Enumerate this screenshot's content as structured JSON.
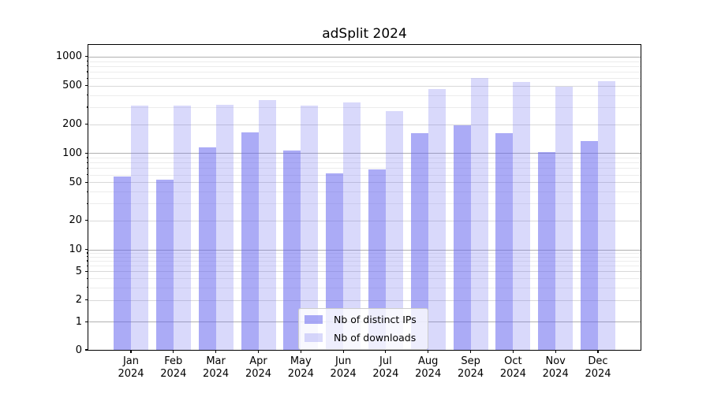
{
  "chart_data": {
    "type": "bar",
    "title": "adSplit 2024",
    "categories": [
      "Jan 2024",
      "Feb 2024",
      "Mar 2024",
      "Apr 2024",
      "May 2024",
      "Jun 2024",
      "Jul 2024",
      "Aug 2024",
      "Sep 2024",
      "Oct 2024",
      "Nov 2024",
      "Dec 2024"
    ],
    "month_labels": [
      "Jan",
      "Feb",
      "Mar",
      "Apr",
      "May",
      "Jun",
      "Jul",
      "Aug",
      "Sep",
      "Oct",
      "Nov",
      "Dec"
    ],
    "year_label": "2024",
    "series": [
      {
        "name": "Nb of distinct IPs",
        "color": "rgba(102,102,238,0.55)",
        "values": [
          57,
          53,
          115,
          163,
          106,
          62,
          68,
          161,
          195,
          162,
          102,
          133
        ]
      },
      {
        "name": "Nb of downloads",
        "color": "rgba(102,102,238,0.25)",
        "values": [
          313,
          312,
          320,
          357,
          312,
          333,
          271,
          458,
          600,
          548,
          485,
          557
        ]
      }
    ],
    "yscale": "symlog",
    "ylim": [
      0,
      1320
    ],
    "ytick_values": [
      1000,
      500,
      200,
      100,
      50,
      20,
      10,
      5,
      2,
      1,
      0
    ],
    "ytick_labels": [
      "1000",
      "500",
      "200",
      "100",
      "50",
      "20",
      "10",
      "5",
      "2",
      "1",
      "0"
    ],
    "grid": true,
    "legend_position": "lower center"
  }
}
